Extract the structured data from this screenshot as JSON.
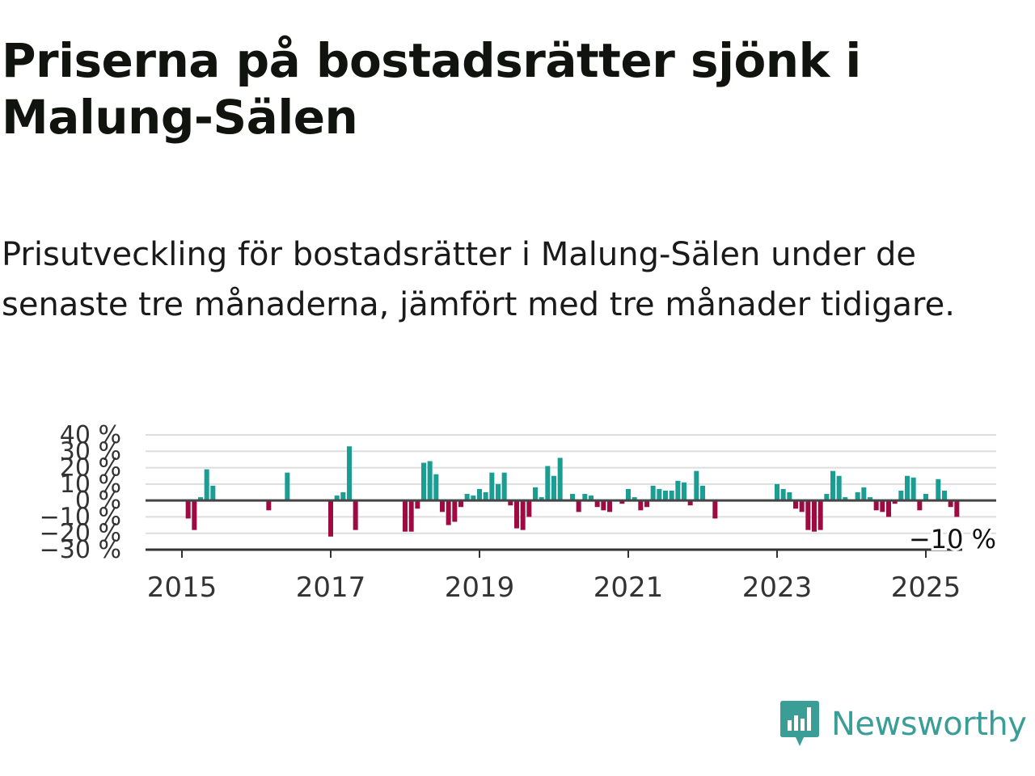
{
  "title": "Priserna på bostadsrätter sjönk i Malung-Sälen",
  "subtitle": "Prisutveckling för bostadsrätter i Malung-Sälen under de senaste tre månaderna, jämfört med tre månader tidigare.",
  "brand": {
    "name": "Newsworthy",
    "color": "#3a9e96"
  },
  "colors": {
    "positive": "#1a9e93",
    "negative": "#9e0b42",
    "grid": "#dddddd",
    "zero_line": "#444444"
  },
  "chart_data": {
    "type": "bar",
    "x_unit": "month",
    "y_unit": "%",
    "ylim": [
      -30,
      40
    ],
    "y_ticks": [
      40,
      30,
      20,
      10,
      0,
      -10,
      -20,
      -30
    ],
    "y_tick_labels": [
      "40 %",
      "30 %",
      "20 %",
      "10 %",
      "0 %",
      "−10 %",
      "−20 %",
      "−30 %"
    ],
    "x_ticks": [
      {
        "label": "2015",
        "date": "2015-01"
      },
      {
        "label": "2017",
        "date": "2017-01"
      },
      {
        "label": "2019",
        "date": "2019-01"
      },
      {
        "label": "2021",
        "date": "2021-01"
      },
      {
        "label": "2023",
        "date": "2023-01"
      },
      {
        "label": "2025",
        "date": "2025-01"
      }
    ],
    "grid": true,
    "end_label": "−10 %",
    "points": [
      {
        "date": "2015-02",
        "value": -11
      },
      {
        "date": "2015-03",
        "value": -18
      },
      {
        "date": "2015-04",
        "value": 2
      },
      {
        "date": "2015-05",
        "value": 19
      },
      {
        "date": "2015-06",
        "value": 9
      },
      {
        "date": "2016-03",
        "value": -6
      },
      {
        "date": "2016-06",
        "value": 17
      },
      {
        "date": "2017-01",
        "value": -22
      },
      {
        "date": "2017-02",
        "value": 3
      },
      {
        "date": "2017-03",
        "value": 5
      },
      {
        "date": "2017-04",
        "value": 33
      },
      {
        "date": "2017-05",
        "value": -18
      },
      {
        "date": "2018-01",
        "value": -19
      },
      {
        "date": "2018-02",
        "value": -19
      },
      {
        "date": "2018-03",
        "value": -5
      },
      {
        "date": "2018-04",
        "value": 23
      },
      {
        "date": "2018-05",
        "value": 24
      },
      {
        "date": "2018-06",
        "value": 16
      },
      {
        "date": "2018-07",
        "value": -7
      },
      {
        "date": "2018-08",
        "value": -15
      },
      {
        "date": "2018-09",
        "value": -13
      },
      {
        "date": "2018-10",
        "value": -4
      },
      {
        "date": "2018-11",
        "value": 4
      },
      {
        "date": "2018-12",
        "value": 3
      },
      {
        "date": "2019-01",
        "value": 7
      },
      {
        "date": "2019-02",
        "value": 5
      },
      {
        "date": "2019-03",
        "value": 17
      },
      {
        "date": "2019-04",
        "value": 10
      },
      {
        "date": "2019-05",
        "value": 17
      },
      {
        "date": "2019-06",
        "value": -3
      },
      {
        "date": "2019-07",
        "value": -17
      },
      {
        "date": "2019-08",
        "value": -18
      },
      {
        "date": "2019-09",
        "value": -10
      },
      {
        "date": "2019-10",
        "value": 8
      },
      {
        "date": "2019-11",
        "value": 2
      },
      {
        "date": "2019-12",
        "value": 21
      },
      {
        "date": "2020-01",
        "value": 15
      },
      {
        "date": "2020-02",
        "value": 26
      },
      {
        "date": "2020-04",
        "value": 4
      },
      {
        "date": "2020-05",
        "value": -7
      },
      {
        "date": "2020-06",
        "value": 4
      },
      {
        "date": "2020-07",
        "value": 3
      },
      {
        "date": "2020-08",
        "value": -4
      },
      {
        "date": "2020-09",
        "value": -6
      },
      {
        "date": "2020-10",
        "value": -7
      },
      {
        "date": "2020-12",
        "value": -2
      },
      {
        "date": "2021-01",
        "value": 7
      },
      {
        "date": "2021-02",
        "value": 2
      },
      {
        "date": "2021-03",
        "value": -6
      },
      {
        "date": "2021-04",
        "value": -4
      },
      {
        "date": "2021-05",
        "value": 9
      },
      {
        "date": "2021-06",
        "value": 7
      },
      {
        "date": "2021-07",
        "value": 6
      },
      {
        "date": "2021-08",
        "value": 6
      },
      {
        "date": "2021-09",
        "value": 12
      },
      {
        "date": "2021-10",
        "value": 11
      },
      {
        "date": "2021-11",
        "value": -3
      },
      {
        "date": "2021-12",
        "value": 18
      },
      {
        "date": "2022-01",
        "value": 9
      },
      {
        "date": "2022-03",
        "value": -11
      },
      {
        "date": "2023-01",
        "value": 10
      },
      {
        "date": "2023-02",
        "value": 7
      },
      {
        "date": "2023-03",
        "value": 5
      },
      {
        "date": "2023-04",
        "value": -5
      },
      {
        "date": "2023-05",
        "value": -7
      },
      {
        "date": "2023-06",
        "value": -18
      },
      {
        "date": "2023-07",
        "value": -19
      },
      {
        "date": "2023-08",
        "value": -18
      },
      {
        "date": "2023-09",
        "value": 4
      },
      {
        "date": "2023-10",
        "value": 18
      },
      {
        "date": "2023-11",
        "value": 15
      },
      {
        "date": "2023-12",
        "value": 2
      },
      {
        "date": "2024-02",
        "value": 5
      },
      {
        "date": "2024-03",
        "value": 8
      },
      {
        "date": "2024-04",
        "value": 2
      },
      {
        "date": "2024-05",
        "value": -6
      },
      {
        "date": "2024-06",
        "value": -7
      },
      {
        "date": "2024-07",
        "value": -10
      },
      {
        "date": "2024-08",
        "value": -2
      },
      {
        "date": "2024-09",
        "value": 6
      },
      {
        "date": "2024-10",
        "value": 15
      },
      {
        "date": "2024-11",
        "value": 14
      },
      {
        "date": "2024-12",
        "value": -6
      },
      {
        "date": "2025-01",
        "value": 4
      },
      {
        "date": "2025-03",
        "value": 13
      },
      {
        "date": "2025-04",
        "value": 6
      },
      {
        "date": "2025-05",
        "value": -4
      },
      {
        "date": "2025-06",
        "value": -10
      }
    ]
  }
}
